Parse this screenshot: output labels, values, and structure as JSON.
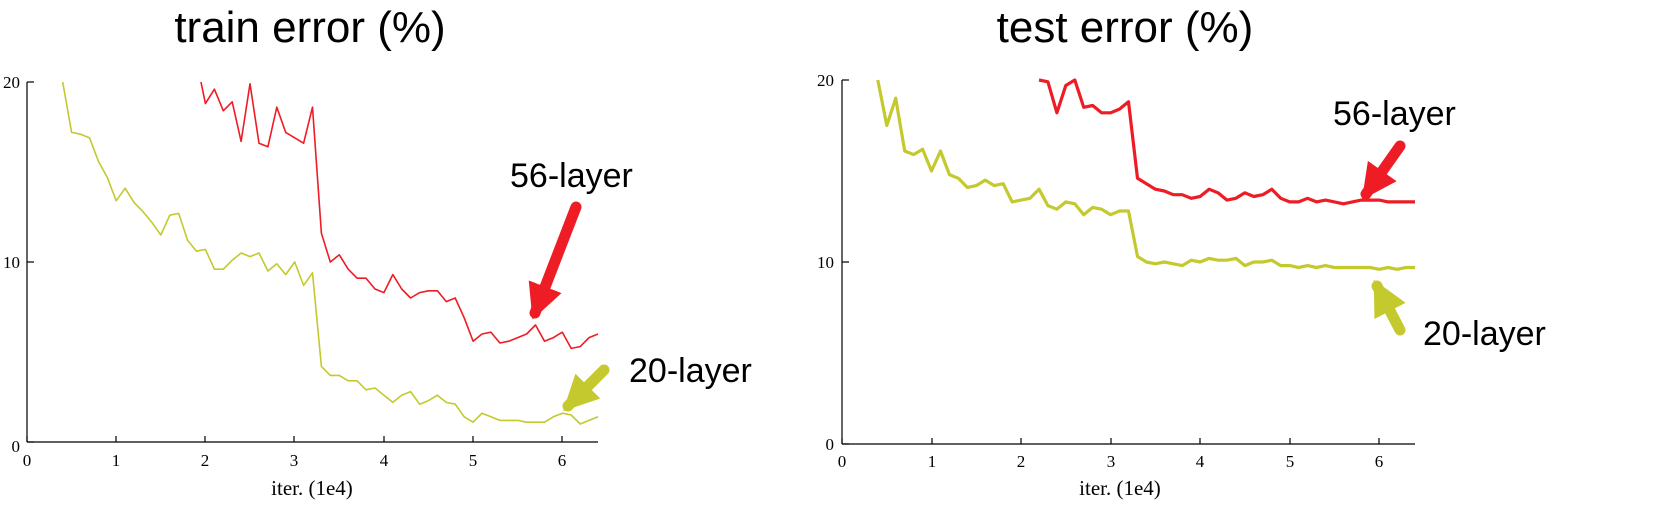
{
  "chart_data": [
    {
      "type": "line",
      "title": "train error (%)",
      "xlabel": "iter. (1e4)",
      "ylabel": "",
      "xlim": [
        0,
        6.4
      ],
      "ylim": [
        0,
        20
      ],
      "xticks": [
        "0",
        "1",
        "2",
        "3",
        "4",
        "5",
        "6"
      ],
      "yticks": [
        "0",
        "10",
        "20"
      ],
      "grid": false,
      "series": [
        {
          "name": "56-layer",
          "color": "#ee1c25",
          "x": [
            1.95,
            2.0,
            2.1,
            2.2,
            2.3,
            2.4,
            2.5,
            2.6,
            2.7,
            2.8,
            2.9,
            3.0,
            3.1,
            3.2,
            3.3,
            3.4,
            3.5,
            3.6,
            3.7,
            3.8,
            3.9,
            4.0,
            4.1,
            4.2,
            4.3,
            4.4,
            4.5,
            4.6,
            4.7,
            4.8,
            4.9,
            5.0,
            5.1,
            5.2,
            5.3,
            5.4,
            5.5,
            5.6,
            5.7,
            5.8,
            5.9,
            6.0,
            6.1,
            6.2,
            6.3,
            6.4
          ],
          "values": [
            20.0,
            18.8,
            19.6,
            18.4,
            18.9,
            16.7,
            19.9,
            16.6,
            16.4,
            18.6,
            17.2,
            16.9,
            16.6,
            18.6,
            11.6,
            10.0,
            10.4,
            9.6,
            9.1,
            9.1,
            8.5,
            8.3,
            9.3,
            8.5,
            8.0,
            8.3,
            8.4,
            8.4,
            7.8,
            8.0,
            6.9,
            5.6,
            6.0,
            6.1,
            5.5,
            5.6,
            5.8,
            6.0,
            6.5,
            5.6,
            5.8,
            6.1,
            5.2,
            5.3,
            5.8,
            6.0
          ]
        },
        {
          "name": "20-layer",
          "color": "#c4c92d",
          "x": [
            0.4,
            0.5,
            0.6,
            0.7,
            0.8,
            0.9,
            1.0,
            1.1,
            1.2,
            1.3,
            1.4,
            1.5,
            1.6,
            1.7,
            1.8,
            1.9,
            2.0,
            2.1,
            2.2,
            2.3,
            2.4,
            2.5,
            2.6,
            2.7,
            2.8,
            2.9,
            3.0,
            3.1,
            3.2,
            3.3,
            3.4,
            3.5,
            3.6,
            3.7,
            3.8,
            3.9,
            4.0,
            4.1,
            4.2,
            4.3,
            4.4,
            4.5,
            4.6,
            4.7,
            4.8,
            4.9,
            5.0,
            5.1,
            5.2,
            5.3,
            5.4,
            5.5,
            5.6,
            5.7,
            5.8,
            5.9,
            6.0,
            6.1,
            6.2,
            6.3,
            6.4
          ],
          "values": [
            20.0,
            17.2,
            17.1,
            16.9,
            15.6,
            14.7,
            13.4,
            14.1,
            13.3,
            12.8,
            12.2,
            11.5,
            12.6,
            12.7,
            11.2,
            10.6,
            10.7,
            9.6,
            9.6,
            10.1,
            10.5,
            10.3,
            10.5,
            9.5,
            9.9,
            9.3,
            10.0,
            8.7,
            9.4,
            4.2,
            3.7,
            3.7,
            3.4,
            3.4,
            2.9,
            3.0,
            2.6,
            2.2,
            2.6,
            2.8,
            2.1,
            2.3,
            2.6,
            2.2,
            2.1,
            1.4,
            1.1,
            1.6,
            1.4,
            1.2,
            1.2,
            1.2,
            1.1,
            1.1,
            1.1,
            1.4,
            1.6,
            1.5,
            1.0,
            1.2,
            1.4
          ]
        }
      ],
      "annotations": [
        {
          "text": "56-layer",
          "color": "#ee1c25",
          "points_to": [
            5.7,
            6.5
          ]
        },
        {
          "text": "20-layer",
          "color": "#c4c92d",
          "points_to": [
            5.9,
            1.5
          ]
        }
      ]
    },
    {
      "type": "line",
      "title": "test error (%)",
      "xlabel": "iter. (1e4)",
      "ylabel": "",
      "xlim": [
        0,
        6.4
      ],
      "ylim": [
        0,
        20
      ],
      "xticks": [
        "0",
        "1",
        "2",
        "3",
        "4",
        "5",
        "6"
      ],
      "yticks": [
        "0",
        "10",
        "20"
      ],
      "grid": false,
      "series": [
        {
          "name": "56-layer",
          "color": "#ee1c25",
          "x": [
            2.2,
            2.3,
            2.4,
            2.5,
            2.6,
            2.7,
            2.8,
            2.9,
            3.0,
            3.1,
            3.2,
            3.3,
            3.4,
            3.5,
            3.6,
            3.7,
            3.8,
            3.9,
            4.0,
            4.1,
            4.2,
            4.3,
            4.4,
            4.5,
            4.6,
            4.7,
            4.8,
            4.9,
            5.0,
            5.1,
            5.2,
            5.3,
            5.4,
            5.5,
            5.6,
            5.7,
            5.8,
            5.9,
            6.0,
            6.1,
            6.2,
            6.3,
            6.4
          ],
          "values": [
            20.0,
            19.9,
            18.2,
            19.7,
            20.0,
            18.5,
            18.6,
            18.2,
            18.2,
            18.4,
            18.8,
            14.6,
            14.3,
            14.0,
            13.9,
            13.7,
            13.7,
            13.5,
            13.6,
            14.0,
            13.8,
            13.4,
            13.5,
            13.8,
            13.6,
            13.7,
            14.0,
            13.5,
            13.3,
            13.3,
            13.5,
            13.3,
            13.4,
            13.3,
            13.2,
            13.3,
            13.4,
            13.4,
            13.4,
            13.3,
            13.3,
            13.3,
            13.3
          ]
        },
        {
          "name": "20-layer",
          "color": "#c4c92d",
          "x": [
            0.4,
            0.5,
            0.6,
            0.7,
            0.8,
            0.9,
            1.0,
            1.1,
            1.2,
            1.3,
            1.4,
            1.5,
            1.6,
            1.7,
            1.8,
            1.9,
            2.0,
            2.1,
            2.2,
            2.3,
            2.4,
            2.5,
            2.6,
            2.7,
            2.8,
            2.9,
            3.0,
            3.1,
            3.2,
            3.3,
            3.4,
            3.5,
            3.6,
            3.7,
            3.8,
            3.9,
            4.0,
            4.1,
            4.2,
            4.3,
            4.4,
            4.5,
            4.6,
            4.7,
            4.8,
            4.9,
            5.0,
            5.1,
            5.2,
            5.3,
            5.4,
            5.5,
            5.6,
            5.7,
            5.8,
            5.9,
            6.0,
            6.1,
            6.2,
            6.3,
            6.4
          ],
          "values": [
            20.0,
            17.5,
            19.0,
            16.1,
            15.9,
            16.2,
            15.0,
            16.1,
            14.8,
            14.6,
            14.1,
            14.2,
            14.5,
            14.2,
            14.3,
            13.3,
            13.4,
            13.5,
            14.0,
            13.1,
            12.9,
            13.3,
            13.2,
            12.6,
            13.0,
            12.9,
            12.6,
            12.8,
            12.8,
            10.3,
            10.0,
            9.9,
            10.0,
            9.9,
            9.8,
            10.1,
            10.0,
            10.2,
            10.1,
            10.1,
            10.2,
            9.8,
            10.0,
            10.0,
            10.1,
            9.8,
            9.8,
            9.7,
            9.8,
            9.7,
            9.8,
            9.7,
            9.7,
            9.7,
            9.7,
            9.7,
            9.6,
            9.7,
            9.6,
            9.7,
            9.7
          ]
        }
      ],
      "annotations": [
        {
          "text": "56-layer",
          "color": "#ee1c25",
          "points_to": [
            5.8,
            13.4
          ]
        },
        {
          "text": "20-layer",
          "color": "#c4c92d",
          "points_to": [
            5.9,
            9.7
          ]
        }
      ]
    }
  ]
}
